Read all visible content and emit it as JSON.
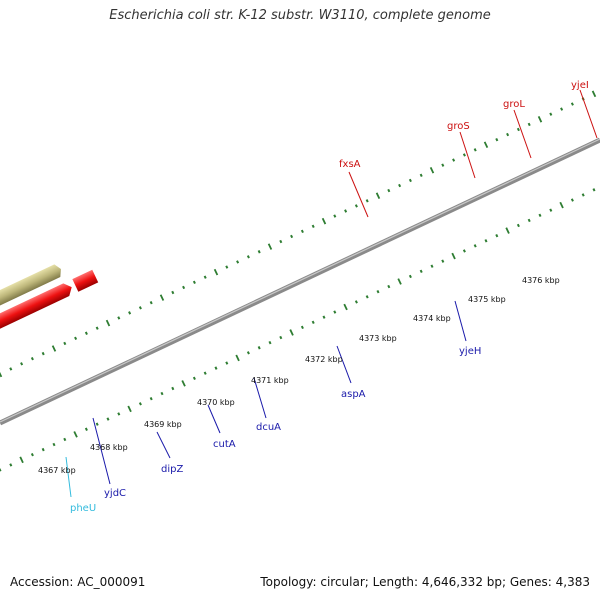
{
  "title": "Escherichia coli str. K-12 substr. W3110, complete genome",
  "accession_label": "Accession: AC_000091",
  "summary_label": "Topology: circular; Length: 4,646,332 bp; Genes: 4,383",
  "kbp_labels": [
    "4367 kbp",
    "4368 kbp",
    "4369 kbp",
    "4370 kbp",
    "4371 kbp",
    "4372 kbp",
    "4373 kbp",
    "4374 kbp",
    "4375 kbp",
    "4376 kbp"
  ],
  "genes": [
    {
      "name": "pheU",
      "color": "#33bbdd"
    },
    {
      "name": "yjdC",
      "color": "#1a1aaa"
    },
    {
      "name": "dipZ",
      "color": "#1a1aaa"
    },
    {
      "name": "cutA",
      "color": "#1a1aaa"
    },
    {
      "name": "dcuA",
      "color": "#1a1aaa"
    },
    {
      "name": "aspA",
      "color": "#1a1aaa"
    },
    {
      "name": "yjeH",
      "color": "#1a1aaa"
    },
    {
      "name": "fxsA",
      "color": "#cc1111"
    },
    {
      "name": "groS",
      "color": "#cc1111"
    },
    {
      "name": "groL",
      "color": "#cc1111"
    },
    {
      "name": "yjeI",
      "color": "#cc1111"
    }
  ],
  "colors": {
    "backbone": "#8a8a8a",
    "tick": "#2e7d32",
    "blue_gene": "#1010dd",
    "red_gene": "#ee1111",
    "olive_gene": "#bdb67a",
    "gray_gene": "#c0c0c0",
    "steel_gene": "#4a7fb5",
    "cyan_gene": "#22eeee",
    "navy_gene": "#3a3a8a"
  }
}
